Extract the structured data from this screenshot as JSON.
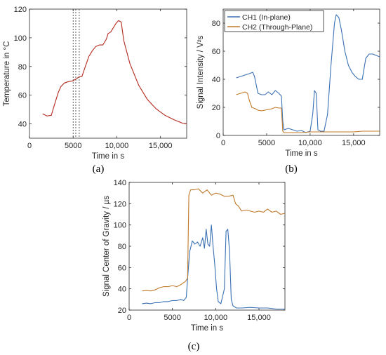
{
  "chart_data": [
    {
      "id": "a",
      "type": "line",
      "panel_label": "(a)",
      "xlabel": "Time in s",
      "ylabel": "Temperature in °C",
      "xlim": [
        0,
        18000
      ],
      "ylim": [
        30,
        120
      ],
      "xticks": [
        0,
        5000,
        10000,
        15000
      ],
      "xtick_labels": [
        "0",
        "5000",
        "10,000",
        "15,000"
      ],
      "yticks": [
        40,
        60,
        80,
        100,
        120
      ],
      "ytick_labels": [
        "40",
        "60",
        "80",
        "100",
        "120"
      ],
      "grid": false,
      "vlines": [
        5000,
        5300,
        5700
      ],
      "series": [
        {
          "color": "#b5291d",
          "x": [
            1500,
            2000,
            2500,
            2800,
            3000,
            3300,
            3600,
            4000,
            4500,
            5000,
            5200,
            5400,
            5600,
            5800,
            6000,
            6400,
            6800,
            7200,
            7600,
            8000,
            8400,
            8600,
            8800,
            9000,
            9300,
            9600,
            9900,
            10200,
            10500,
            10800,
            11500,
            12500,
            13500,
            14500,
            15500,
            16500,
            17500,
            18000
          ],
          "y": [
            47,
            45.5,
            46,
            52,
            56,
            62,
            66,
            68.5,
            69.5,
            70,
            71,
            71.5,
            72.5,
            73,
            73,
            80,
            87,
            91,
            94,
            95,
            95,
            97,
            99,
            103,
            104,
            107,
            110,
            112,
            111,
            98,
            82,
            67,
            57,
            50.5,
            46,
            43,
            40.5,
            40
          ]
        }
      ]
    },
    {
      "id": "b",
      "type": "line",
      "panel_label": "(b)",
      "xlabel": "Time in s",
      "ylabel": "Signal Intensity / V²s",
      "xlim": [
        0,
        18000
      ],
      "ylim": [
        0,
        90
      ],
      "xticks": [
        0,
        5000,
        10000,
        15000
      ],
      "xtick_labels": [
        "0",
        "5000",
        "10,000",
        "15,000"
      ],
      "yticks": [
        0,
        20,
        40,
        60,
        80
      ],
      "ytick_labels": [
        "0",
        "20",
        "40",
        "60",
        "80"
      ],
      "grid": false,
      "legend_position": "top-left",
      "series": [
        {
          "name": "CH1 (In-plane)",
          "color": "#3a70b5",
          "x": [
            1500,
            2000,
            2500,
            3000,
            3400,
            3600,
            4000,
            4400,
            4800,
            5200,
            5600,
            6000,
            6400,
            6700,
            6850,
            7000,
            7500,
            8000,
            8500,
            9000,
            9500,
            10000,
            10300,
            10500,
            10700,
            10900,
            11200,
            11600,
            12000,
            12400,
            12800,
            13000,
            13300,
            13600,
            14000,
            14400,
            14800,
            15200,
            15600,
            16000,
            16400,
            16800,
            17200,
            17600,
            18000
          ],
          "y": [
            41,
            42,
            43,
            44,
            45,
            42,
            30,
            29,
            29,
            31,
            29,
            32,
            30,
            28,
            10,
            4,
            5,
            4,
            3,
            3.5,
            2,
            3,
            15,
            32,
            30,
            4,
            3,
            3,
            15,
            50,
            80,
            86,
            84,
            75,
            60,
            50,
            45,
            42,
            40,
            40,
            55,
            58,
            58,
            57,
            56
          ]
        },
        {
          "name": "CH2 (Through-Plane)",
          "color": "#c07a2a",
          "x": [
            1500,
            2000,
            2500,
            2800,
            3000,
            3300,
            3700,
            4000,
            4400,
            4800,
            5200,
            5600,
            6000,
            6400,
            6700,
            6850,
            7000,
            7500,
            8000,
            9000,
            10000,
            11000,
            12000,
            13000,
            14000,
            15000,
            16000,
            17000,
            18000
          ],
          "y": [
            29,
            30,
            31,
            30,
            25,
            20,
            19,
            18,
            17.5,
            18,
            18.5,
            19,
            20,
            19.5,
            19.5,
            3,
            2,
            2,
            2,
            2,
            2.5,
            2.5,
            2.5,
            2.5,
            2.5,
            2.5,
            3,
            3,
            3
          ]
        }
      ]
    },
    {
      "id": "c",
      "type": "line",
      "panel_label": "(c)",
      "xlabel": "Time in s",
      "ylabel": "Signal Center of Gravity / µs",
      "xlim": [
        0,
        18000
      ],
      "ylim": [
        20,
        140
      ],
      "xticks": [
        0,
        5000,
        10000,
        15000
      ],
      "xtick_labels": [
        "0",
        "5000",
        "10,000",
        "15,000"
      ],
      "yticks": [
        20,
        40,
        60,
        80,
        100,
        120,
        140
      ],
      "ytick_labels": [
        "20",
        "40",
        "60",
        "80",
        "100",
        "120",
        "140"
      ],
      "grid": false,
      "series": [
        {
          "color": "#3a70b5",
          "x": [
            1500,
            2000,
            2500,
            3000,
            3500,
            4000,
            4500,
            5000,
            5500,
            6000,
            6300,
            6600,
            6800,
            7000,
            7300,
            7600,
            7900,
            8200,
            8500,
            8700,
            8900,
            9100,
            9300,
            9500,
            9700,
            9900,
            10100,
            10300,
            10600,
            11000,
            11200,
            11400,
            11600,
            11800,
            12000,
            12400,
            13000,
            14000,
            15000,
            16000,
            17000,
            18000
          ],
          "y": [
            26,
            26.5,
            26,
            27,
            27,
            28,
            28,
            29,
            29,
            30,
            29,
            32,
            55,
            75,
            85,
            82,
            84,
            80,
            88,
            78,
            96,
            82,
            80,
            100,
            80,
            62,
            40,
            28,
            26,
            40,
            94,
            96,
            75,
            30,
            24,
            22,
            22,
            22.5,
            22,
            22,
            21,
            21
          ]
        },
        {
          "color": "#c07a2a",
          "x": [
            1500,
            2000,
            2500,
            3000,
            3500,
            4000,
            4500,
            5000,
            5500,
            6000,
            6500,
            6750,
            6900,
            7100,
            7500,
            8000,
            8500,
            9000,
            9500,
            10000,
            10500,
            11000,
            11500,
            12000,
            12300,
            12600,
            13000,
            13500,
            14000,
            14500,
            15000,
            15500,
            16000,
            16500,
            17000,
            17500,
            18000
          ],
          "y": [
            38,
            38.5,
            38,
            39,
            41,
            42,
            42,
            43,
            42,
            44,
            47,
            50,
            128,
            133,
            133,
            134,
            130,
            133,
            128,
            130,
            129,
            127,
            127,
            128,
            120,
            118,
            113,
            114,
            113,
            112,
            113,
            112,
            115,
            112,
            113,
            110,
            111
          ]
        }
      ]
    }
  ]
}
